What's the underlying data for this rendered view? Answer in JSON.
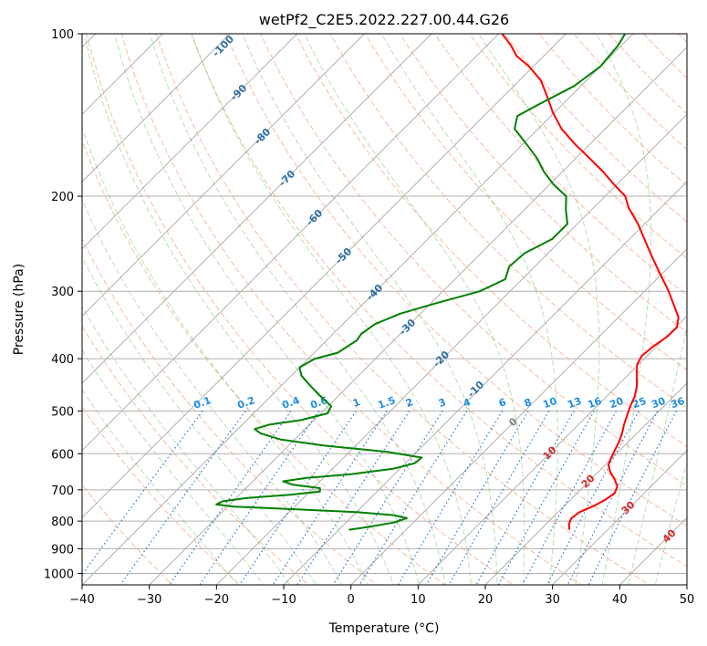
{
  "chart_data": {
    "type": "line",
    "title": "wetPf2_C2E5.2022.227.00.44.G26",
    "xlabel": "Temperature (°C)",
    "ylabel": "Pressure (hPa)",
    "xlim": [
      -40,
      50
    ],
    "ylim": [
      1050,
      100
    ],
    "y_scale": "log",
    "x_ticks": [
      -40,
      -30,
      -20,
      -10,
      0,
      10,
      20,
      30,
      40,
      50
    ],
    "x_tick_labels": [
      "−40",
      "−30",
      "−20",
      "−10",
      "0",
      "10",
      "20",
      "30",
      "40",
      "50"
    ],
    "y_ticks": [
      100,
      200,
      300,
      400,
      500,
      600,
      700,
      800,
      900,
      1000
    ],
    "y_tick_labels": [
      "100",
      "200",
      "300",
      "400",
      "500",
      "600",
      "700",
      "800",
      "900",
      "1000"
    ],
    "grid": true,
    "skew": "temperature isotherms skewed 45°",
    "dry_adiabat_labels": [
      "-100",
      "-90",
      "-80",
      "-70",
      "-60",
      "-50",
      "-40",
      "-30",
      "-20",
      "-10"
    ],
    "dry_adiabat_label_values": [
      -100,
      -90,
      -80,
      -70,
      -60,
      -50,
      -40,
      -30,
      -20,
      -10
    ],
    "moist_adiabat_labels": [
      "0",
      "10",
      "20",
      "30",
      "40"
    ],
    "moist_adiabat_label_values": [
      0,
      10,
      20,
      30,
      40
    ],
    "mixing_ratio_labels": [
      "0.1",
      "0.2",
      "0.4",
      "0.6",
      "1",
      "1.5",
      "2",
      "3",
      "4",
      "6",
      "8",
      "10",
      "13",
      "16",
      "20",
      "25",
      "30",
      "36"
    ],
    "mixing_ratio_values": [
      0.1,
      0.2,
      0.4,
      0.6,
      1,
      1.5,
      2,
      3,
      4,
      6,
      8,
      10,
      13,
      16,
      20,
      25,
      30,
      36
    ],
    "series": [
      {
        "color": "#ff0000",
        "points": [
          [
            830,
            24.3
          ],
          [
            810,
            23.4
          ],
          [
            790,
            22.9
          ],
          [
            770,
            23.2
          ],
          [
            750,
            24.4
          ],
          [
            730,
            25.2
          ],
          [
            710,
            25.6
          ],
          [
            690,
            25.0
          ],
          [
            670,
            23.6
          ],
          [
            650,
            21.9
          ],
          [
            630,
            20.5
          ],
          [
            610,
            19.8
          ],
          [
            590,
            19.2
          ],
          [
            570,
            18.6
          ],
          [
            550,
            17.8
          ],
          [
            530,
            16.8
          ],
          [
            510,
            15.9
          ],
          [
            490,
            15.0
          ],
          [
            470,
            14.2
          ],
          [
            450,
            13.0
          ],
          [
            430,
            11.4
          ],
          [
            410,
            9.8
          ],
          [
            395,
            9.2
          ],
          [
            380,
            9.5
          ],
          [
            365,
            10.1
          ],
          [
            350,
            10.2
          ],
          [
            335,
            8.9
          ],
          [
            320,
            6.7
          ],
          [
            300,
            3.6
          ],
          [
            280,
            0.0
          ],
          [
            260,
            -3.8
          ],
          [
            240,
            -7.8
          ],
          [
            225,
            -11.0
          ],
          [
            210,
            -14.8
          ],
          [
            200,
            -17.0
          ],
          [
            190,
            -20.5
          ],
          [
            180,
            -24.0
          ],
          [
            170,
            -28.0
          ],
          [
            160,
            -32.3
          ],
          [
            150,
            -36.5
          ],
          [
            140,
            -40.2
          ],
          [
            130,
            -43.7
          ],
          [
            122,
            -46.8
          ],
          [
            115,
            -50.6
          ],
          [
            110,
            -54.0
          ],
          [
            105,
            -56.5
          ],
          [
            100,
            -59.5
          ]
        ]
      },
      {
        "color": "#008000",
        "points": [
          [
            830,
            -8.5
          ],
          [
            820,
            -6.0
          ],
          [
            805,
            -2.9
          ],
          [
            790,
            -1.6
          ],
          [
            780,
            -4.0
          ],
          [
            770,
            -10.0
          ],
          [
            760,
            -20.0
          ],
          [
            752,
            -29.0
          ],
          [
            745,
            -32.0
          ],
          [
            735,
            -31.5
          ],
          [
            725,
            -28.5
          ],
          [
            715,
            -22.5
          ],
          [
            705,
            -18.5
          ],
          [
            695,
            -19.0
          ],
          [
            685,
            -23.5
          ],
          [
            675,
            -25.5
          ],
          [
            665,
            -22.5
          ],
          [
            655,
            -16.5
          ],
          [
            640,
            -11.0
          ],
          [
            625,
            -8.6
          ],
          [
            610,
            -8.4
          ],
          [
            595,
            -14.5
          ],
          [
            580,
            -24.5
          ],
          [
            565,
            -32.0
          ],
          [
            550,
            -36.0
          ],
          [
            540,
            -37.5
          ],
          [
            530,
            -36.0
          ],
          [
            520,
            -32.0
          ],
          [
            505,
            -29.0
          ],
          [
            490,
            -29.5
          ],
          [
            470,
            -32.5
          ],
          [
            450,
            -35.5
          ],
          [
            430,
            -38.5
          ],
          [
            415,
            -40.0
          ],
          [
            400,
            -39.0
          ],
          [
            390,
            -36.5
          ],
          [
            380,
            -36.0
          ],
          [
            370,
            -35.5
          ],
          [
            360,
            -35.8
          ],
          [
            345,
            -35.2
          ],
          [
            330,
            -33.0
          ],
          [
            315,
            -29.0
          ],
          [
            300,
            -24.5
          ],
          [
            285,
            -22.5
          ],
          [
            270,
            -23.8
          ],
          [
            255,
            -23.5
          ],
          [
            240,
            -21.5
          ],
          [
            225,
            -21.5
          ],
          [
            212,
            -23.8
          ],
          [
            200,
            -25.8
          ],
          [
            190,
            -29.5
          ],
          [
            180,
            -32.8
          ],
          [
            170,
            -35.8
          ],
          [
            160,
            -39.5
          ],
          [
            150,
            -43.5
          ],
          [
            142,
            -45.0
          ],
          [
            135,
            -43.5
          ],
          [
            125,
            -41.0
          ],
          [
            115,
            -40.0
          ],
          [
            105,
            -40.5
          ],
          [
            100,
            -41.2
          ]
        ]
      }
    ]
  }
}
